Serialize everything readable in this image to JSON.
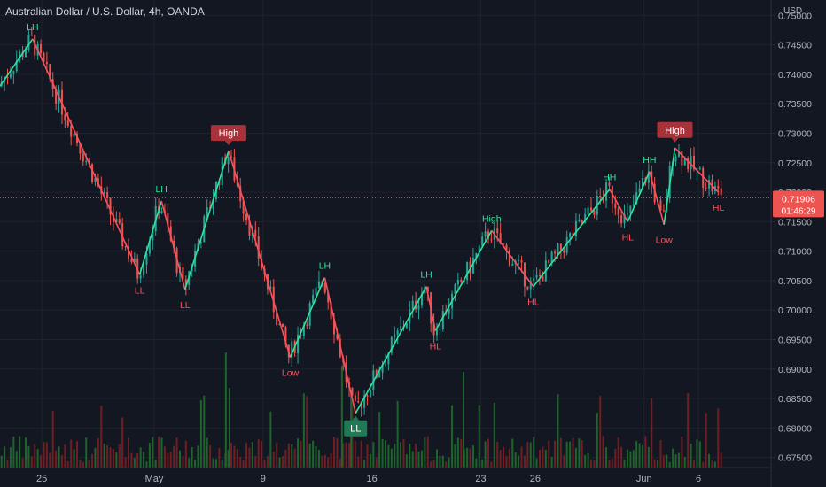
{
  "chart_title": "Australian Dollar / U.S. Dollar, 4h, OANDA",
  "currency": "USD",
  "last_price": "0.71906",
  "countdown": "01:46:29",
  "colors": {
    "background": "#131722",
    "up": "#26a69a",
    "down": "#ef5350",
    "zigzag_up": "#2ee59d",
    "zigzag_down": "#f7525f",
    "label_up": "#2ee59d",
    "label_down": "#f7525f",
    "badge_high": "#a8323a",
    "badge_ll": "#1f7a55",
    "volume_up": "#1f6b2c",
    "volume_down": "#7a1f23",
    "grid": "#1e222d",
    "axis_text": "#b2b5be",
    "price_line": "#ef5350"
  },
  "chart_data": {
    "type": "candlestick",
    "title": "Australian Dollar / U.S. Dollar, 4h, OANDA",
    "y_axis_label": "USD",
    "y_ticks": [
      "0.75000",
      "0.74500",
      "0.74000",
      "0.73500",
      "0.73000",
      "0.72500",
      "0.72000",
      "0.71500",
      "0.71000",
      "0.70500",
      "0.70000",
      "0.69500",
      "0.69000",
      "0.68500",
      "0.68000",
      "0.67500"
    ],
    "ylim": [
      0.6733,
      0.7526
    ],
    "x_ticks": [
      {
        "label": "25",
        "t": 2.3
      },
      {
        "label": "May",
        "t": 8.5
      },
      {
        "label": "9",
        "t": 14.5
      },
      {
        "label": "16",
        "t": 20.5
      },
      {
        "label": "23",
        "t": 26.5
      },
      {
        "label": "26",
        "t": 29.5
      },
      {
        "label": "Jun",
        "t": 35.5
      },
      {
        "label": "6",
        "t": 38.5
      }
    ],
    "xlim": [
      0,
      42.5
    ],
    "zigzag": [
      {
        "t": 0.0,
        "price": 0.738
      },
      {
        "t": 1.8,
        "price": 0.746
      },
      {
        "t": 7.7,
        "price": 0.706
      },
      {
        "t": 8.9,
        "price": 0.7185
      },
      {
        "t": 10.2,
        "price": 0.7035
      },
      {
        "t": 12.6,
        "price": 0.727
      },
      {
        "t": 16.0,
        "price": 0.692
      },
      {
        "t": 17.9,
        "price": 0.7055
      },
      {
        "t": 19.6,
        "price": 0.6825
      },
      {
        "t": 23.5,
        "price": 0.704
      },
      {
        "t": 24.0,
        "price": 0.6965
      },
      {
        "t": 27.1,
        "price": 0.7135
      },
      {
        "t": 29.4,
        "price": 0.704
      },
      {
        "t": 33.6,
        "price": 0.7205
      },
      {
        "t": 34.6,
        "price": 0.715
      },
      {
        "t": 35.8,
        "price": 0.7235
      },
      {
        "t": 36.6,
        "price": 0.7145
      },
      {
        "t": 37.2,
        "price": 0.7275
      },
      {
        "t": 39.6,
        "price": 0.72
      }
    ],
    "swing_labels": [
      {
        "text": "LH",
        "t": 1.8,
        "price": 0.746,
        "pos": "above",
        "dir": "up"
      },
      {
        "text": "LL",
        "t": 7.7,
        "price": 0.706,
        "pos": "below",
        "dir": "down"
      },
      {
        "text": "LH",
        "t": 8.9,
        "price": 0.7185,
        "pos": "above",
        "dir": "up"
      },
      {
        "text": "LL",
        "t": 10.2,
        "price": 0.7035,
        "pos": "below",
        "dir": "down"
      },
      {
        "text": "High",
        "t": 12.6,
        "price": 0.7275,
        "pos": "badge-above",
        "dir": "high"
      },
      {
        "text": "Low",
        "t": 16.0,
        "price": 0.692,
        "pos": "below",
        "dir": "down"
      },
      {
        "text": "LH",
        "t": 17.9,
        "price": 0.7055,
        "pos": "above",
        "dir": "up"
      },
      {
        "text": "LL",
        "t": 19.6,
        "price": 0.6825,
        "pos": "badge-below",
        "dir": "ll"
      },
      {
        "text": "LH",
        "t": 23.5,
        "price": 0.704,
        "pos": "above",
        "dir": "up"
      },
      {
        "text": "HL",
        "t": 24.0,
        "price": 0.6965,
        "pos": "below",
        "dir": "down"
      },
      {
        "text": "High",
        "t": 27.1,
        "price": 0.7135,
        "pos": "above",
        "dir": "up"
      },
      {
        "text": "HL",
        "t": 29.4,
        "price": 0.704,
        "pos": "below",
        "dir": "down"
      },
      {
        "text": "HH",
        "t": 33.6,
        "price": 0.7205,
        "pos": "above",
        "dir": "up"
      },
      {
        "text": "HL",
        "t": 34.6,
        "price": 0.715,
        "pos": "below",
        "dir": "down"
      },
      {
        "text": "HH",
        "t": 35.8,
        "price": 0.7235,
        "pos": "above",
        "dir": "up"
      },
      {
        "text": "Low",
        "t": 36.6,
        "price": 0.7145,
        "pos": "below",
        "dir": "down"
      },
      {
        "text": "High",
        "t": 37.2,
        "price": 0.728,
        "pos": "badge-above",
        "dir": "high"
      },
      {
        "text": "HL",
        "t": 39.6,
        "price": 0.72,
        "pos": "below",
        "dir": "down"
      }
    ],
    "candles_per_unit": 6,
    "last_t": 39.8,
    "current_price": 0.71906
  }
}
